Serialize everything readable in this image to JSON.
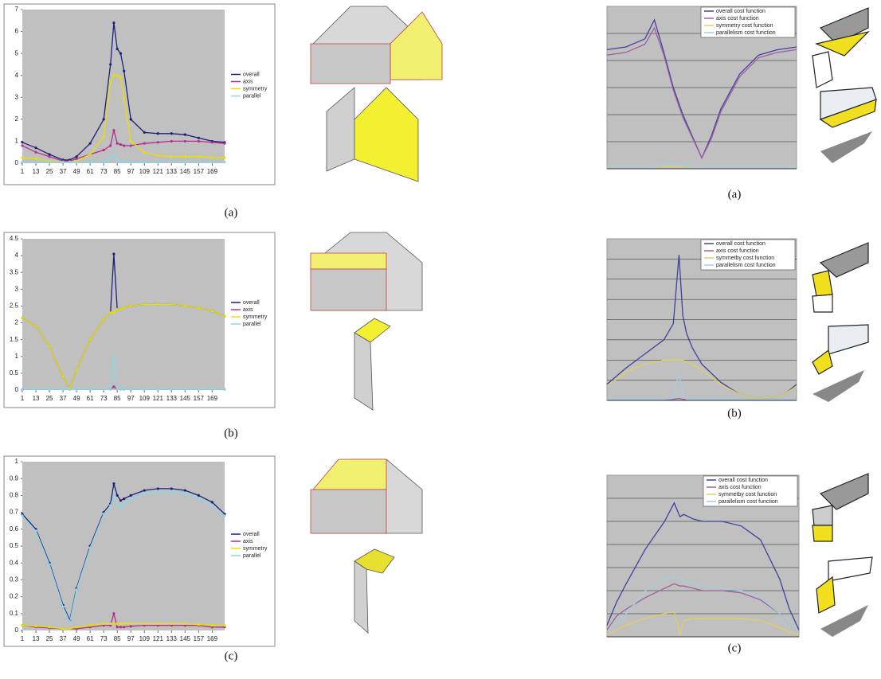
{
  "chart_data": [
    {
      "type": "line",
      "caption": "(a)",
      "legend": "right",
      "grid": false,
      "markers": true,
      "x": [
        1,
        13,
        25,
        37,
        43,
        49,
        61,
        73,
        79,
        82,
        85,
        88,
        91,
        97,
        109,
        121,
        133,
        145,
        157,
        169,
        180
      ],
      "xlim": [
        1,
        180
      ],
      "xticks": [
        1,
        13,
        25,
        37,
        49,
        61,
        73,
        85,
        97,
        109,
        121,
        133,
        145,
        157,
        169
      ],
      "ylim": [
        0,
        7
      ],
      "yticks": [
        0,
        1,
        2,
        3,
        4,
        5,
        6,
        7
      ],
      "series": [
        {
          "name": "overall",
          "color": "#1f1f7a",
          "values": [
            0.95,
            0.7,
            0.4,
            0.15,
            0.15,
            0.3,
            0.9,
            2.0,
            4.5,
            6.4,
            5.2,
            5.0,
            4.2,
            2.0,
            1.4,
            1.35,
            1.35,
            1.3,
            1.15,
            1.0,
            0.95
          ]
        },
        {
          "name": "axis",
          "color": "#b03090",
          "values": [
            0.8,
            0.5,
            0.3,
            0.1,
            0.1,
            0.2,
            0.4,
            0.6,
            0.8,
            1.5,
            0.9,
            0.85,
            0.8,
            0.8,
            0.9,
            0.95,
            1.0,
            1.0,
            1.0,
            0.95,
            0.9
          ]
        },
        {
          "name": "symmetry",
          "color": "#e8e000",
          "values": [
            0.25,
            0.2,
            0.1,
            0.05,
            0.05,
            0.1,
            0.4,
            1.2,
            3.7,
            4.0,
            4.0,
            3.9,
            3.0,
            1.0,
            0.5,
            0.35,
            0.3,
            0.3,
            0.3,
            0.25,
            0.25
          ]
        },
        {
          "name": "parallel",
          "color": "#88d8e8",
          "values": [
            0.05,
            0.05,
            0.05,
            0.05,
            0.05,
            0.05,
            0.05,
            0.1,
            0.2,
            0.4,
            0.15,
            0.1,
            0.05,
            0.05,
            0.05,
            0.05,
            0.05,
            0.05,
            0.05,
            0.05,
            0.05
          ]
        }
      ]
    },
    {
      "type": "line",
      "caption": "(b)",
      "legend": "right",
      "grid": false,
      "markers": true,
      "x": [
        1,
        13,
        25,
        37,
        43,
        49,
        61,
        73,
        79,
        82,
        85,
        88,
        91,
        97,
        109,
        121,
        133,
        145,
        157,
        169,
        180
      ],
      "xlim": [
        1,
        180
      ],
      "xticks": [
        1,
        13,
        25,
        37,
        49,
        61,
        73,
        85,
        97,
        109,
        121,
        133,
        145,
        157,
        169
      ],
      "ylim": [
        0,
        4.5
      ],
      "yticks": [
        0,
        0.5,
        1,
        1.5,
        2,
        2.5,
        3,
        3.5,
        4,
        4.5
      ],
      "series": [
        {
          "name": "overall",
          "color": "#1f1f7a",
          "values": [
            2.15,
            1.9,
            1.3,
            0.4,
            0.05,
            0.6,
            1.5,
            2.1,
            2.3,
            4.05,
            2.4,
            2.4,
            2.45,
            2.5,
            2.55,
            2.55,
            2.55,
            2.5,
            2.45,
            2.35,
            2.2
          ]
        },
        {
          "name": "axis",
          "color": "#b03090",
          "values": [
            0.02,
            0.02,
            0.02,
            0.02,
            0.02,
            0.02,
            0.02,
            0.02,
            0.02,
            0.1,
            0.02,
            0.02,
            0.02,
            0.02,
            0.02,
            0.02,
            0.02,
            0.02,
            0.02,
            0.02,
            0.02
          ]
        },
        {
          "name": "symmetry",
          "color": "#e8e000",
          "values": [
            2.15,
            1.9,
            1.3,
            0.4,
            0.05,
            0.6,
            1.5,
            2.1,
            2.3,
            2.3,
            2.4,
            2.4,
            2.45,
            2.5,
            2.55,
            2.55,
            2.55,
            2.5,
            2.45,
            2.35,
            2.2
          ]
        },
        {
          "name": "parallel",
          "color": "#88d8e8",
          "values": [
            0.02,
            0.02,
            0.02,
            0.02,
            0.02,
            0.02,
            0.02,
            0.02,
            0.02,
            1.0,
            0.02,
            0.02,
            0.02,
            0.02,
            0.02,
            0.02,
            0.02,
            0.02,
            0.02,
            0.02,
            0.02
          ]
        }
      ]
    },
    {
      "type": "line",
      "caption": "(c)",
      "legend": "right",
      "grid": false,
      "markers": true,
      "x": [
        1,
        13,
        25,
        37,
        43,
        49,
        61,
        73,
        79,
        82,
        85,
        88,
        91,
        97,
        109,
        121,
        133,
        145,
        157,
        169,
        180
      ],
      "xlim": [
        1,
        180
      ],
      "xticks": [
        1,
        13,
        25,
        37,
        49,
        61,
        73,
        85,
        97,
        109,
        121,
        133,
        145,
        157,
        169
      ],
      "ylim": [
        0,
        1
      ],
      "yticks": [
        0,
        0.1,
        0.2,
        0.3,
        0.4,
        0.5,
        0.6,
        0.7,
        0.8,
        0.9,
        1
      ],
      "series": [
        {
          "name": "overall",
          "color": "#1f1f7a",
          "values": [
            0.69,
            0.6,
            0.4,
            0.15,
            0.06,
            0.25,
            0.5,
            0.7,
            0.75,
            0.87,
            0.8,
            0.77,
            0.78,
            0.8,
            0.83,
            0.84,
            0.84,
            0.83,
            0.8,
            0.76,
            0.69
          ]
        },
        {
          "name": "axis",
          "color": "#b03090",
          "values": [
            0.03,
            0.02,
            0.015,
            0.01,
            0.01,
            0.01,
            0.02,
            0.03,
            0.03,
            0.1,
            0.02,
            0.02,
            0.02,
            0.025,
            0.03,
            0.03,
            0.03,
            0.03,
            0.03,
            0.02,
            0.02
          ]
        },
        {
          "name": "symmetry",
          "color": "#e8e000",
          "values": [
            0.03,
            0.025,
            0.02,
            0.01,
            0.01,
            0.02,
            0.03,
            0.04,
            0.04,
            0.04,
            0.04,
            0.04,
            0.04,
            0.04,
            0.04,
            0.04,
            0.04,
            0.04,
            0.035,
            0.03,
            0.03
          ]
        },
        {
          "name": "parallel",
          "color": "#88d8e8",
          "values": [
            0.68,
            0.59,
            0.39,
            0.14,
            0.05,
            0.24,
            0.49,
            0.69,
            0.74,
            0.8,
            0.74,
            0.73,
            0.75,
            0.78,
            0.81,
            0.82,
            0.82,
            0.81,
            0.78,
            0.74,
            0.68
          ]
        }
      ]
    },
    {
      "type": "line",
      "caption": "(a)",
      "legend": "top-right",
      "grid": true,
      "markers": false,
      "x": [
        0,
        10,
        20,
        25,
        30,
        35,
        40,
        50,
        55,
        60,
        70,
        80,
        90,
        100
      ],
      "xlim": [
        0,
        100
      ],
      "ylim": [
        0,
        6
      ],
      "series": [
        {
          "name": "overall cost function",
          "color": "#4040a0",
          "values": [
            4.4,
            4.5,
            4.8,
            5.5,
            4.3,
            3.0,
            2.0,
            0.4,
            1.2,
            2.2,
            3.5,
            4.2,
            4.4,
            4.5
          ]
        },
        {
          "name": "axis cost function",
          "color": "#a060a0",
          "values": [
            4.2,
            4.3,
            4.6,
            5.2,
            4.2,
            2.9,
            1.9,
            0.4,
            1.1,
            2.1,
            3.4,
            4.1,
            4.3,
            4.4
          ]
        },
        {
          "name": "symmetry cost function",
          "color": "#e0d060",
          "values": [
            0.1,
            0.1,
            0.1,
            0.1,
            0.1,
            0.1,
            0.1,
            0.1,
            0.1,
            0.1,
            0.1,
            0.1,
            0.1,
            0.1
          ]
        },
        {
          "name": "parallelism cost function",
          "color": "#a0d0e0",
          "values": [
            0.1,
            0.1,
            0.1,
            0.1,
            0.15,
            0.2,
            0.12,
            0.1,
            0.1,
            0.1,
            0.1,
            0.1,
            0.1,
            0.1
          ]
        }
      ]
    },
    {
      "type": "line",
      "caption": "(b)",
      "legend": "top-right",
      "grid": true,
      "markers": false,
      "x": [
        0,
        10,
        20,
        30,
        35,
        38,
        40,
        42,
        45,
        50,
        60,
        70,
        80,
        90,
        95,
        100
      ],
      "xlim": [
        0,
        100
      ],
      "ylim": [
        0,
        8
      ],
      "series": [
        {
          "name": "overall cost function",
          "color": "#4040a0",
          "values": [
            0.8,
            1.6,
            2.3,
            3.0,
            3.8,
            7.2,
            4.2,
            3.3,
            2.6,
            1.8,
            0.9,
            0.3,
            0.1,
            0.2,
            0.4,
            0.8
          ]
        },
        {
          "name": "axis cost function",
          "color": "#a060a0",
          "values": [
            0.05,
            0.05,
            0.05,
            0.05,
            0.05,
            0.1,
            0.05,
            0.05,
            0.05,
            0.05,
            0.05,
            0.05,
            0.05,
            0.05,
            0.05,
            0.05
          ]
        },
        {
          "name": "symmetby cost function",
          "color": "#e0d060",
          "values": [
            0.7,
            1.4,
            1.8,
            2.0,
            2.0,
            2.0,
            2.0,
            1.9,
            1.8,
            1.5,
            0.8,
            0.3,
            0.1,
            0.2,
            0.4,
            0.7
          ]
        },
        {
          "name": "parallelism cost function",
          "color": "#a0d0e0",
          "values": [
            0.05,
            0.05,
            0.05,
            0.05,
            0.1,
            1.4,
            0.2,
            0.05,
            0.05,
            0.05,
            0.05,
            0.05,
            0.05,
            0.05,
            0.05,
            0.05
          ]
        }
      ]
    },
    {
      "type": "line",
      "caption": "(c)",
      "legend": "top-right",
      "grid": true,
      "markers": false,
      "x": [
        0,
        5,
        10,
        20,
        30,
        35,
        38,
        40,
        45,
        50,
        60,
        70,
        80,
        90,
        95,
        100
      ],
      "xlim": [
        0,
        100
      ],
      "ylim": [
        0,
        7
      ],
      "series": [
        {
          "name": "overall cost function",
          "color": "#4040a0",
          "values": [
            0.5,
            1.5,
            2.3,
            3.8,
            5.0,
            5.8,
            5.2,
            5.3,
            5.1,
            5.0,
            5.0,
            4.8,
            4.2,
            2.5,
            1.2,
            0.3
          ]
        },
        {
          "name": "axis cost function",
          "color": "#a060a0",
          "values": [
            0.3,
            0.9,
            1.2,
            1.7,
            2.1,
            2.3,
            2.2,
            2.2,
            2.1,
            2.0,
            2.0,
            1.9,
            1.6,
            1.0,
            0.5,
            0.2
          ]
        },
        {
          "name": "symmetby cost function",
          "color": "#e0d060",
          "values": [
            0.1,
            0.3,
            0.5,
            0.8,
            1.0,
            1.1,
            0.1,
            0.7,
            0.8,
            0.8,
            0.8,
            0.8,
            0.7,
            0.4,
            0.2,
            0.1
          ]
        },
        {
          "name": "parallelism cost function",
          "color": "#a0d0e0",
          "values": [
            0.2,
            0.6,
            1.0,
            2.0,
            2.5,
            2.6,
            2.5,
            2.4,
            2.3,
            2.2,
            2.1,
            2.0,
            1.7,
            1.0,
            0.5,
            0.2
          ]
        }
      ]
    }
  ]
}
